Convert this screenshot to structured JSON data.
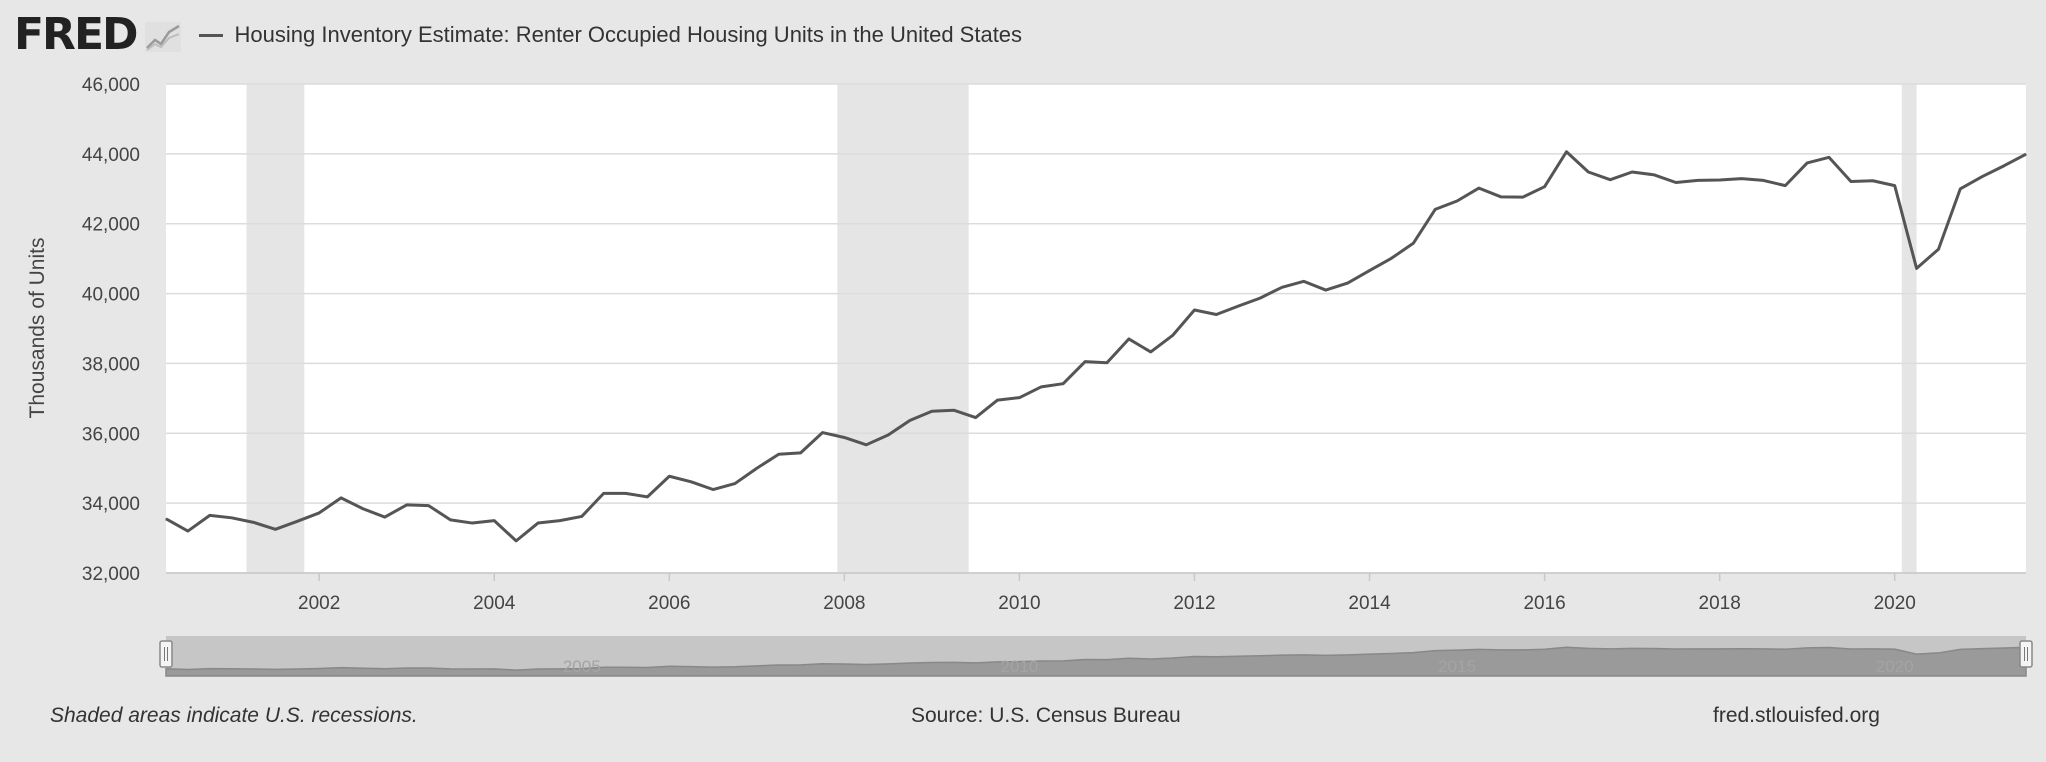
{
  "header": {
    "logo_text": "FRED",
    "logo_icon": "chart-line-icon",
    "series_title": "Housing Inventory Estimate: Renter Occupied Housing Units in the United States"
  },
  "footer": {
    "recession_note": "Shaded areas indicate U.S. recessions.",
    "source": "Source: U.S. Census Bureau",
    "site": "fred.stlouisfed.org"
  },
  "navigator": {
    "tick_labels": [
      "2005",
      "2010",
      "2015",
      "2020"
    ]
  },
  "colors": {
    "line": "#555555",
    "recession_band": "#e5e5e5",
    "plot_background": "#ffffff",
    "page_background": "#e7e7e7"
  },
  "chart_data": {
    "type": "line",
    "title": "Housing Inventory Estimate: Renter Occupied Housing Units in the United States",
    "xlabel": "",
    "ylabel": "Thousands of Units",
    "xlim": [
      2000.25,
      2021.5
    ],
    "ylim": [
      32000,
      46000
    ],
    "x_ticks": [
      2002,
      2004,
      2006,
      2008,
      2010,
      2012,
      2014,
      2016,
      2018,
      2020
    ],
    "y_ticks": [
      32000,
      34000,
      36000,
      38000,
      40000,
      42000,
      44000,
      46000
    ],
    "grid": "horizontal",
    "legend": "top-left",
    "recessions": [
      [
        2001.17,
        2001.83
      ],
      [
        2007.92,
        2009.42
      ],
      [
        2020.08,
        2020.25
      ]
    ],
    "series": [
      {
        "name": "Housing Inventory Estimate: Renter Occupied Housing Units in the United States",
        "x": [
          2000.25,
          2000.5,
          2000.75,
          2001.0,
          2001.25,
          2001.5,
          2001.75,
          2002.0,
          2002.25,
          2002.5,
          2002.75,
          2003.0,
          2003.25,
          2003.5,
          2003.75,
          2004.0,
          2004.25,
          2004.5,
          2004.75,
          2005.0,
          2005.25,
          2005.5,
          2005.75,
          2006.0,
          2006.25,
          2006.5,
          2006.75,
          2007.0,
          2007.25,
          2007.5,
          2007.75,
          2008.0,
          2008.25,
          2008.5,
          2008.75,
          2009.0,
          2009.25,
          2009.5,
          2009.75,
          2010.0,
          2010.25,
          2010.5,
          2010.75,
          2011.0,
          2011.25,
          2011.5,
          2011.75,
          2012.0,
          2012.25,
          2012.5,
          2012.75,
          2013.0,
          2013.25,
          2013.5,
          2013.75,
          2014.0,
          2014.25,
          2014.5,
          2014.75,
          2015.0,
          2015.25,
          2015.5,
          2015.75,
          2016.0,
          2016.25,
          2016.5,
          2016.75,
          2017.0,
          2017.25,
          2017.5,
          2017.75,
          2018.0,
          2018.25,
          2018.5,
          2018.75,
          2019.0,
          2019.25,
          2019.5,
          2019.75,
          2020.0,
          2020.25,
          2020.5,
          2020.75,
          2021.0,
          2021.25,
          2021.5
        ],
        "values": [
          33550,
          33200,
          33650,
          33580,
          33450,
          33250,
          33480,
          33720,
          34150,
          33840,
          33600,
          33950,
          33930,
          33520,
          33430,
          33500,
          32920,
          33430,
          33500,
          33620,
          34280,
          34280,
          34180,
          34770,
          34610,
          34390,
          34560,
          35000,
          35400,
          35440,
          36020,
          35880,
          35670,
          35950,
          36370,
          36630,
          36660,
          36450,
          36950,
          37020,
          37330,
          37420,
          38050,
          38020,
          38700,
          38330,
          38800,
          39530,
          39400,
          39640,
          39870,
          40180,
          40350,
          40100,
          40300,
          40660,
          41010,
          41440,
          42410,
          42650,
          43020,
          42770,
          42760,
          43060,
          44060,
          43480,
          43260,
          43480,
          43400,
          43180,
          43240,
          43250,
          43290,
          43240,
          43090,
          43740,
          43900,
          43210,
          43230,
          43090,
          40720,
          41270,
          43000,
          43350,
          43660,
          43990
        ]
      }
    ]
  }
}
